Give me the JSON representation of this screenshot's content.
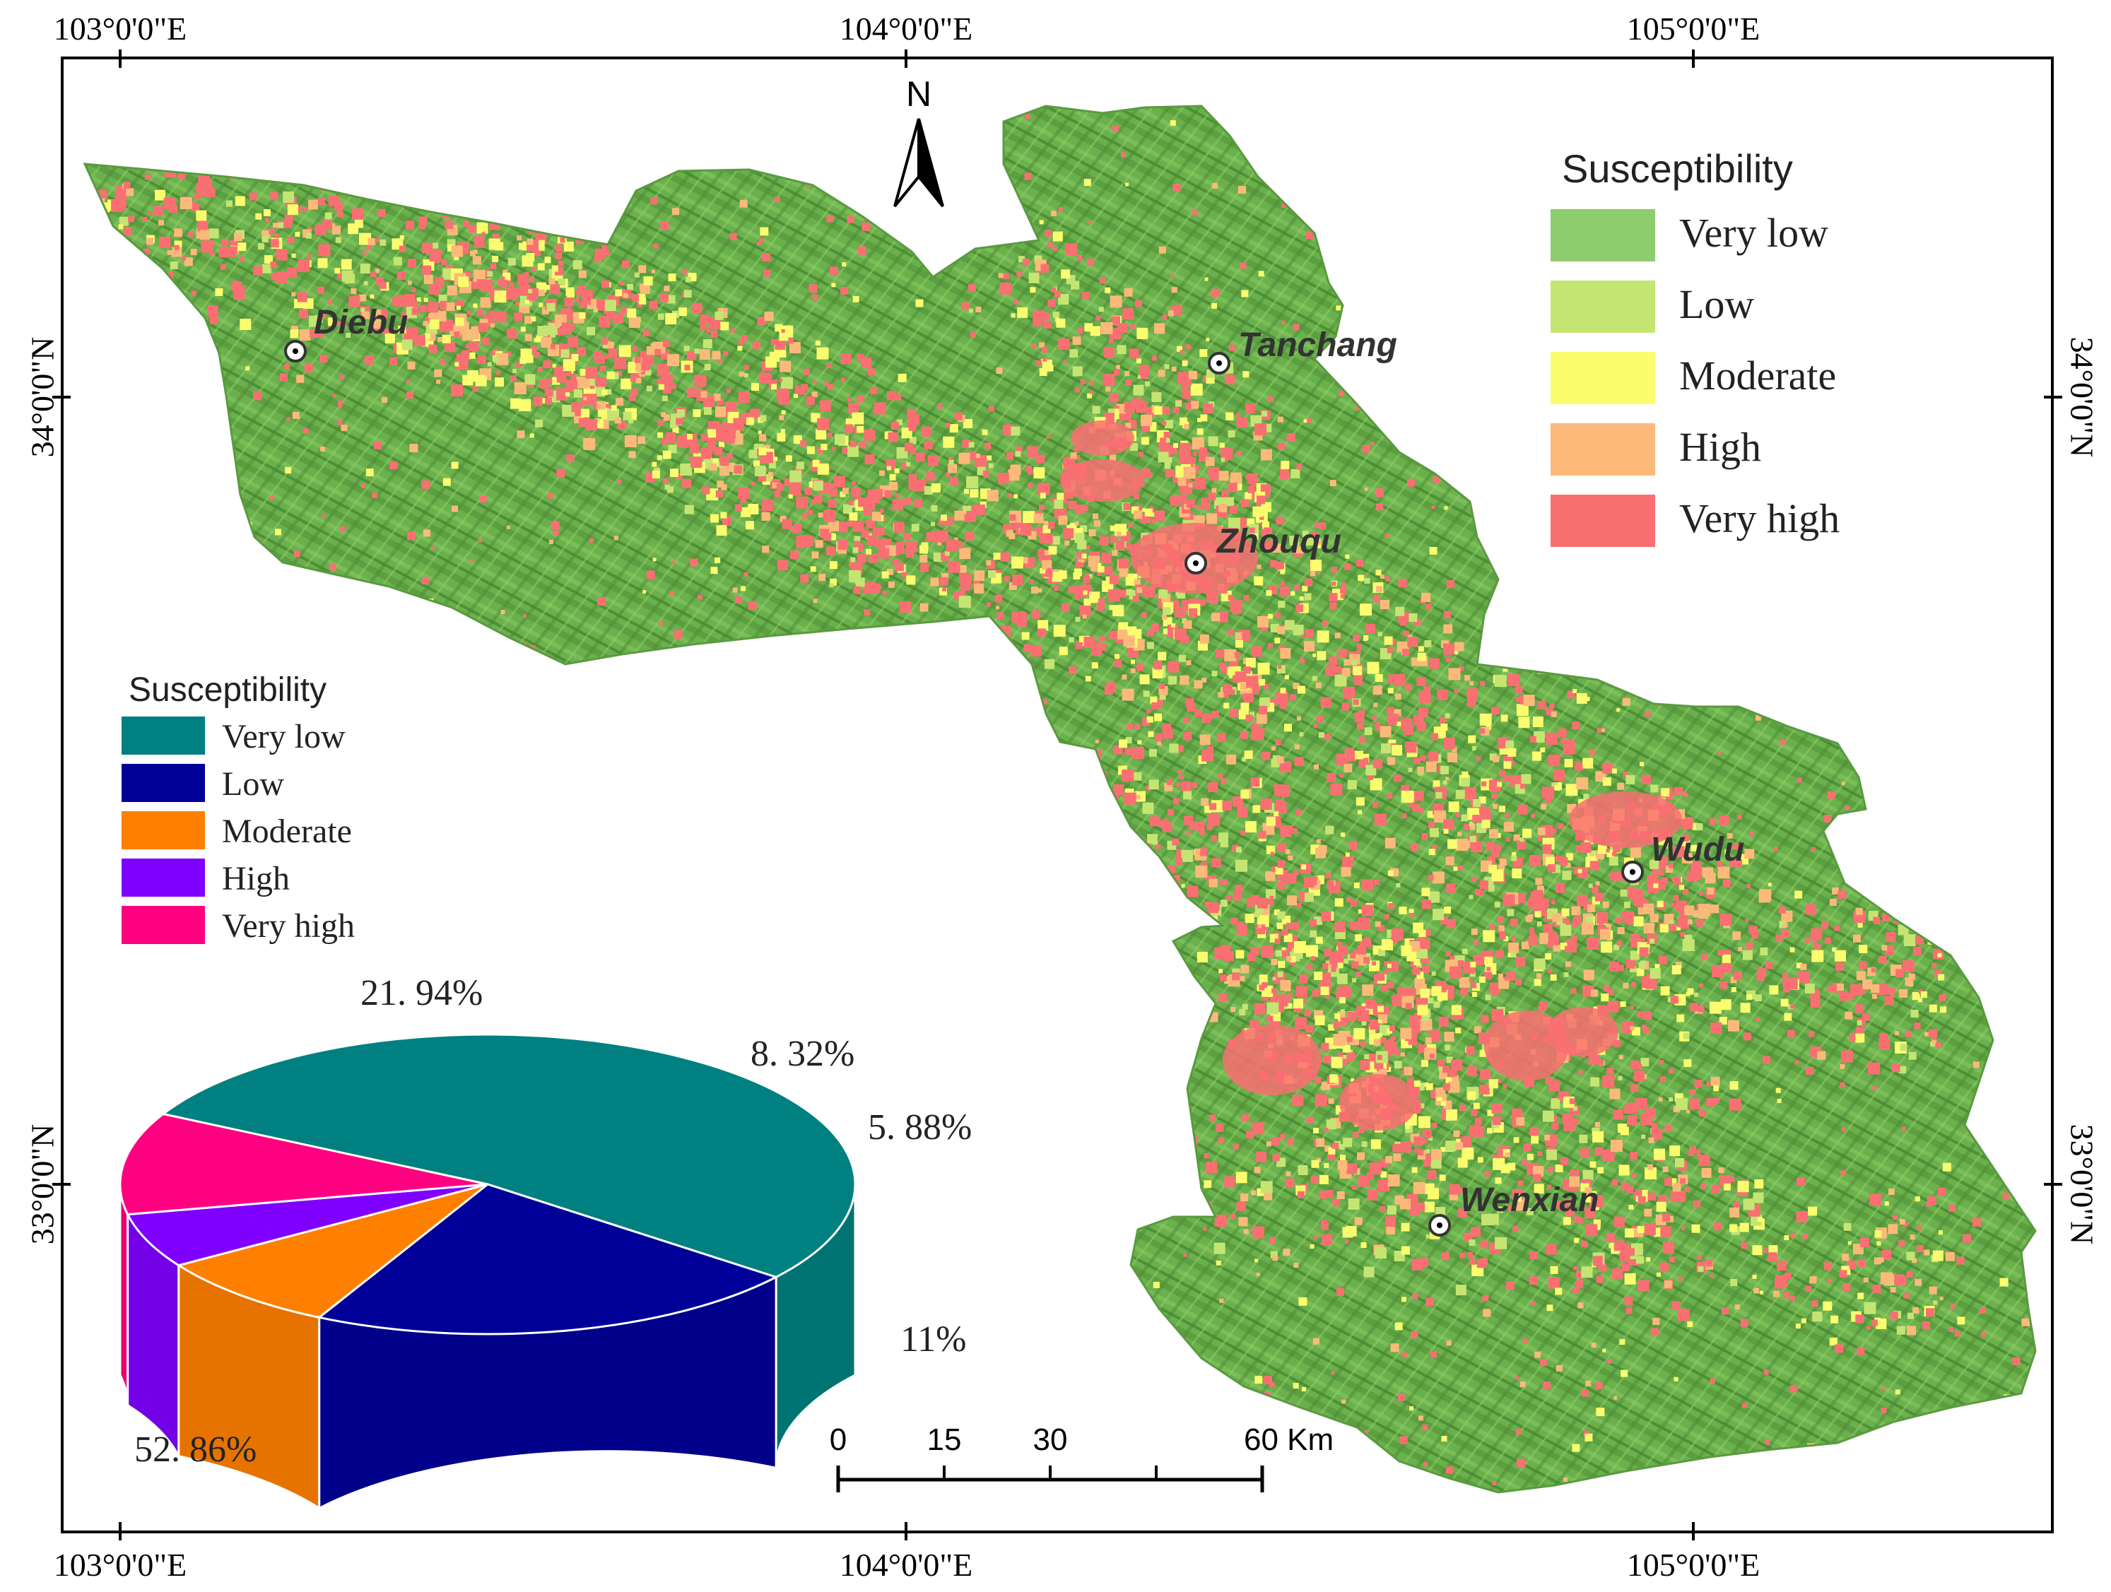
{
  "map": {
    "graticule": {
      "top": [
        "103°0'0\"E",
        "104°0'0\"E",
        "105°0'0\"E"
      ],
      "bottom": [
        "103°0'0\"E",
        "104°0'0\"E",
        "105°0'0\"E"
      ],
      "left": [
        "34°0'0\"N",
        "33°0'0\"N"
      ],
      "right": [
        "34°0'0\"N",
        "33°0'0\"N"
      ]
    },
    "north_arrow": {
      "label": "N"
    },
    "cities": [
      {
        "name": "Diebu"
      },
      {
        "name": "Tanchang"
      },
      {
        "name": "Zhouqu"
      },
      {
        "name": "Wudu"
      },
      {
        "name": "Wenxian"
      }
    ],
    "scale_bar": {
      "ticks": [
        "0",
        "15",
        "30",
        "60 Km"
      ]
    },
    "map_legend": {
      "title": "Susceptibility",
      "items": [
        {
          "label": "Very low",
          "color": "#8dcd6e"
        },
        {
          "label": "Low",
          "color": "#c5e573"
        },
        {
          "label": "Moderate",
          "color": "#fbfd6f"
        },
        {
          "label": "High",
          "color": "#fdb97a"
        },
        {
          "label": "Very high",
          "color": "#fa6f72"
        }
      ]
    },
    "terrain_colors": {
      "base": "#6ab04c",
      "dark": "#4f8f36",
      "light": "#86c45f",
      "outline": "#5a9a40"
    }
  },
  "chart_data": {
    "type": "pie",
    "title": "",
    "legend_title": "Susceptibility",
    "legend_placement": "top-left",
    "categories": [
      "Very low",
      "Low",
      "Moderate",
      "High",
      "Very high"
    ],
    "values": [
      52.86,
      21.94,
      8.32,
      5.88,
      11
    ],
    "labels": [
      "52. 86%",
      "21. 94%",
      "8. 32%",
      "5. 88%",
      "11%"
    ],
    "colors": [
      "#008080",
      "#000099",
      "#ff8000",
      "#8000ff",
      "#ff0080"
    ],
    "side_colors": [
      "#007373",
      "#00008a",
      "#e67300",
      "#7300e6",
      "#e60073"
    ]
  }
}
